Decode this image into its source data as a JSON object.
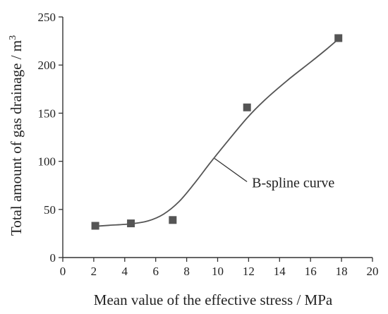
{
  "chart_data": {
    "type": "scatter",
    "title": "",
    "xlabel": "Mean value of the effective stress / MPa",
    "ylabel": "Total amount of gas drainage / m",
    "ylabel_superscript": "3",
    "xlim": [
      0,
      20
    ],
    "ylim": [
      0,
      250
    ],
    "xticks": [
      0,
      2,
      4,
      6,
      8,
      10,
      12,
      14,
      16,
      18,
      20
    ],
    "yticks": [
      0,
      50,
      100,
      150,
      200,
      250
    ],
    "grid": false,
    "legend": "none",
    "series": [
      {
        "marker": "square",
        "color": "#555555",
        "points": [
          {
            "x": 2.1,
            "y": 33
          },
          {
            "x": 4.4,
            "y": 35.5
          },
          {
            "x": 7.1,
            "y": 39
          },
          {
            "x": 11.9,
            "y": 156
          },
          {
            "x": 17.8,
            "y": 228
          }
        ]
      }
    ],
    "curve": {
      "type": "B-spline",
      "color": "#555555",
      "points": [
        {
          "x": 2.1,
          "y": 32.5
        },
        {
          "x": 3.0,
          "y": 33.5
        },
        {
          "x": 4.4,
          "y": 35
        },
        {
          "x": 5.5,
          "y": 38
        },
        {
          "x": 6.5,
          "y": 45
        },
        {
          "x": 7.5,
          "y": 58
        },
        {
          "x": 8.5,
          "y": 77
        },
        {
          "x": 9.5,
          "y": 98
        },
        {
          "x": 10.5,
          "y": 118
        },
        {
          "x": 11.9,
          "y": 145
        },
        {
          "x": 13.0,
          "y": 163
        },
        {
          "x": 14.5,
          "y": 184
        },
        {
          "x": 16.0,
          "y": 203
        },
        {
          "x": 17.0,
          "y": 216
        },
        {
          "x": 17.8,
          "y": 227
        }
      ]
    },
    "annotations": [
      {
        "text": "B-spline curve",
        "points_to": {
          "x": 9.8,
          "y": 103
        }
      }
    ]
  }
}
